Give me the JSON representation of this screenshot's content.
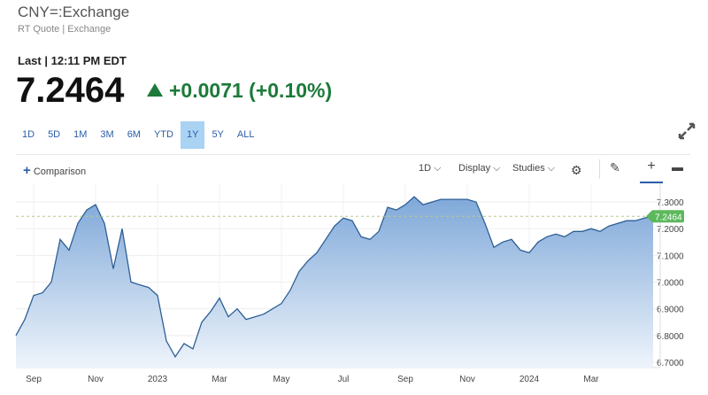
{
  "header": {
    "title": "CNY=:Exchange",
    "subtitle": "RT Quote | Exchange"
  },
  "quote": {
    "last": "Last | 12:11 PM EDT",
    "price": "7.2464",
    "change": "+0.0071 (+0.10%)"
  },
  "ranges": [
    "1D",
    "5D",
    "1M",
    "3M",
    "6M",
    "YTD",
    "1Y",
    "5Y",
    "ALL"
  ],
  "active_range": "1Y",
  "toolbar": {
    "comparison": "Comparison",
    "interval": "1D",
    "display": "Display",
    "studies": "Studies"
  },
  "chart_data": {
    "type": "area",
    "color": "#2d5f95",
    "categories": [
      null,
      null,
      "Sep",
      null,
      null,
      null,
      null,
      null,
      null,
      "Nov",
      null,
      null,
      null,
      null,
      null,
      null,
      "2023",
      null,
      null,
      null,
      null,
      null,
      null,
      "Mar",
      null,
      null,
      null,
      null,
      null,
      null,
      "May",
      null,
      null,
      null,
      null,
      null,
      null,
      "Jul",
      null,
      null,
      null,
      null,
      null,
      null,
      "Sep",
      null,
      null,
      null,
      null,
      null,
      null,
      "Nov",
      null,
      null,
      null,
      null,
      null,
      null,
      "2024",
      null,
      null,
      null,
      null,
      null,
      null,
      "Mar",
      null,
      null,
      null,
      null,
      null,
      null,
      null
    ],
    "values": [
      6.8,
      6.86,
      6.95,
      6.96,
      7.0,
      7.16,
      7.12,
      7.22,
      7.27,
      7.29,
      7.22,
      7.05,
      7.2,
      7.0,
      6.99,
      6.98,
      6.95,
      6.78,
      6.72,
      6.77,
      6.75,
      6.85,
      6.89,
      6.94,
      6.87,
      6.9,
      6.86,
      6.87,
      6.88,
      6.9,
      6.92,
      6.97,
      7.04,
      7.08,
      7.11,
      7.16,
      7.21,
      7.24,
      7.23,
      7.17,
      7.16,
      7.19,
      7.28,
      7.27,
      7.29,
      7.32,
      7.29,
      7.3,
      7.31,
      7.31,
      7.31,
      7.31,
      7.3,
      7.22,
      7.13,
      7.15,
      7.16,
      7.12,
      7.11,
      7.15,
      7.17,
      7.18,
      7.17,
      7.19,
      7.19,
      7.2,
      7.19,
      7.21,
      7.22,
      7.23,
      7.23,
      7.24,
      7.2464
    ],
    "last_value": 7.2464,
    "ylim": [
      6.68,
      7.37
    ],
    "yticks": [
      {
        "value": 6.7,
        "label": "6.7000"
      },
      {
        "value": 6.8,
        "label": "6.8000"
      },
      {
        "value": 6.9,
        "label": "6.9000"
      },
      {
        "value": 7.0,
        "label": "7.0000"
      },
      {
        "value": 7.1,
        "label": "7.1000"
      },
      {
        "value": 7.2,
        "label": "7.2000"
      },
      {
        "value": 7.3,
        "label": "7.3000"
      }
    ],
    "grid": true
  }
}
